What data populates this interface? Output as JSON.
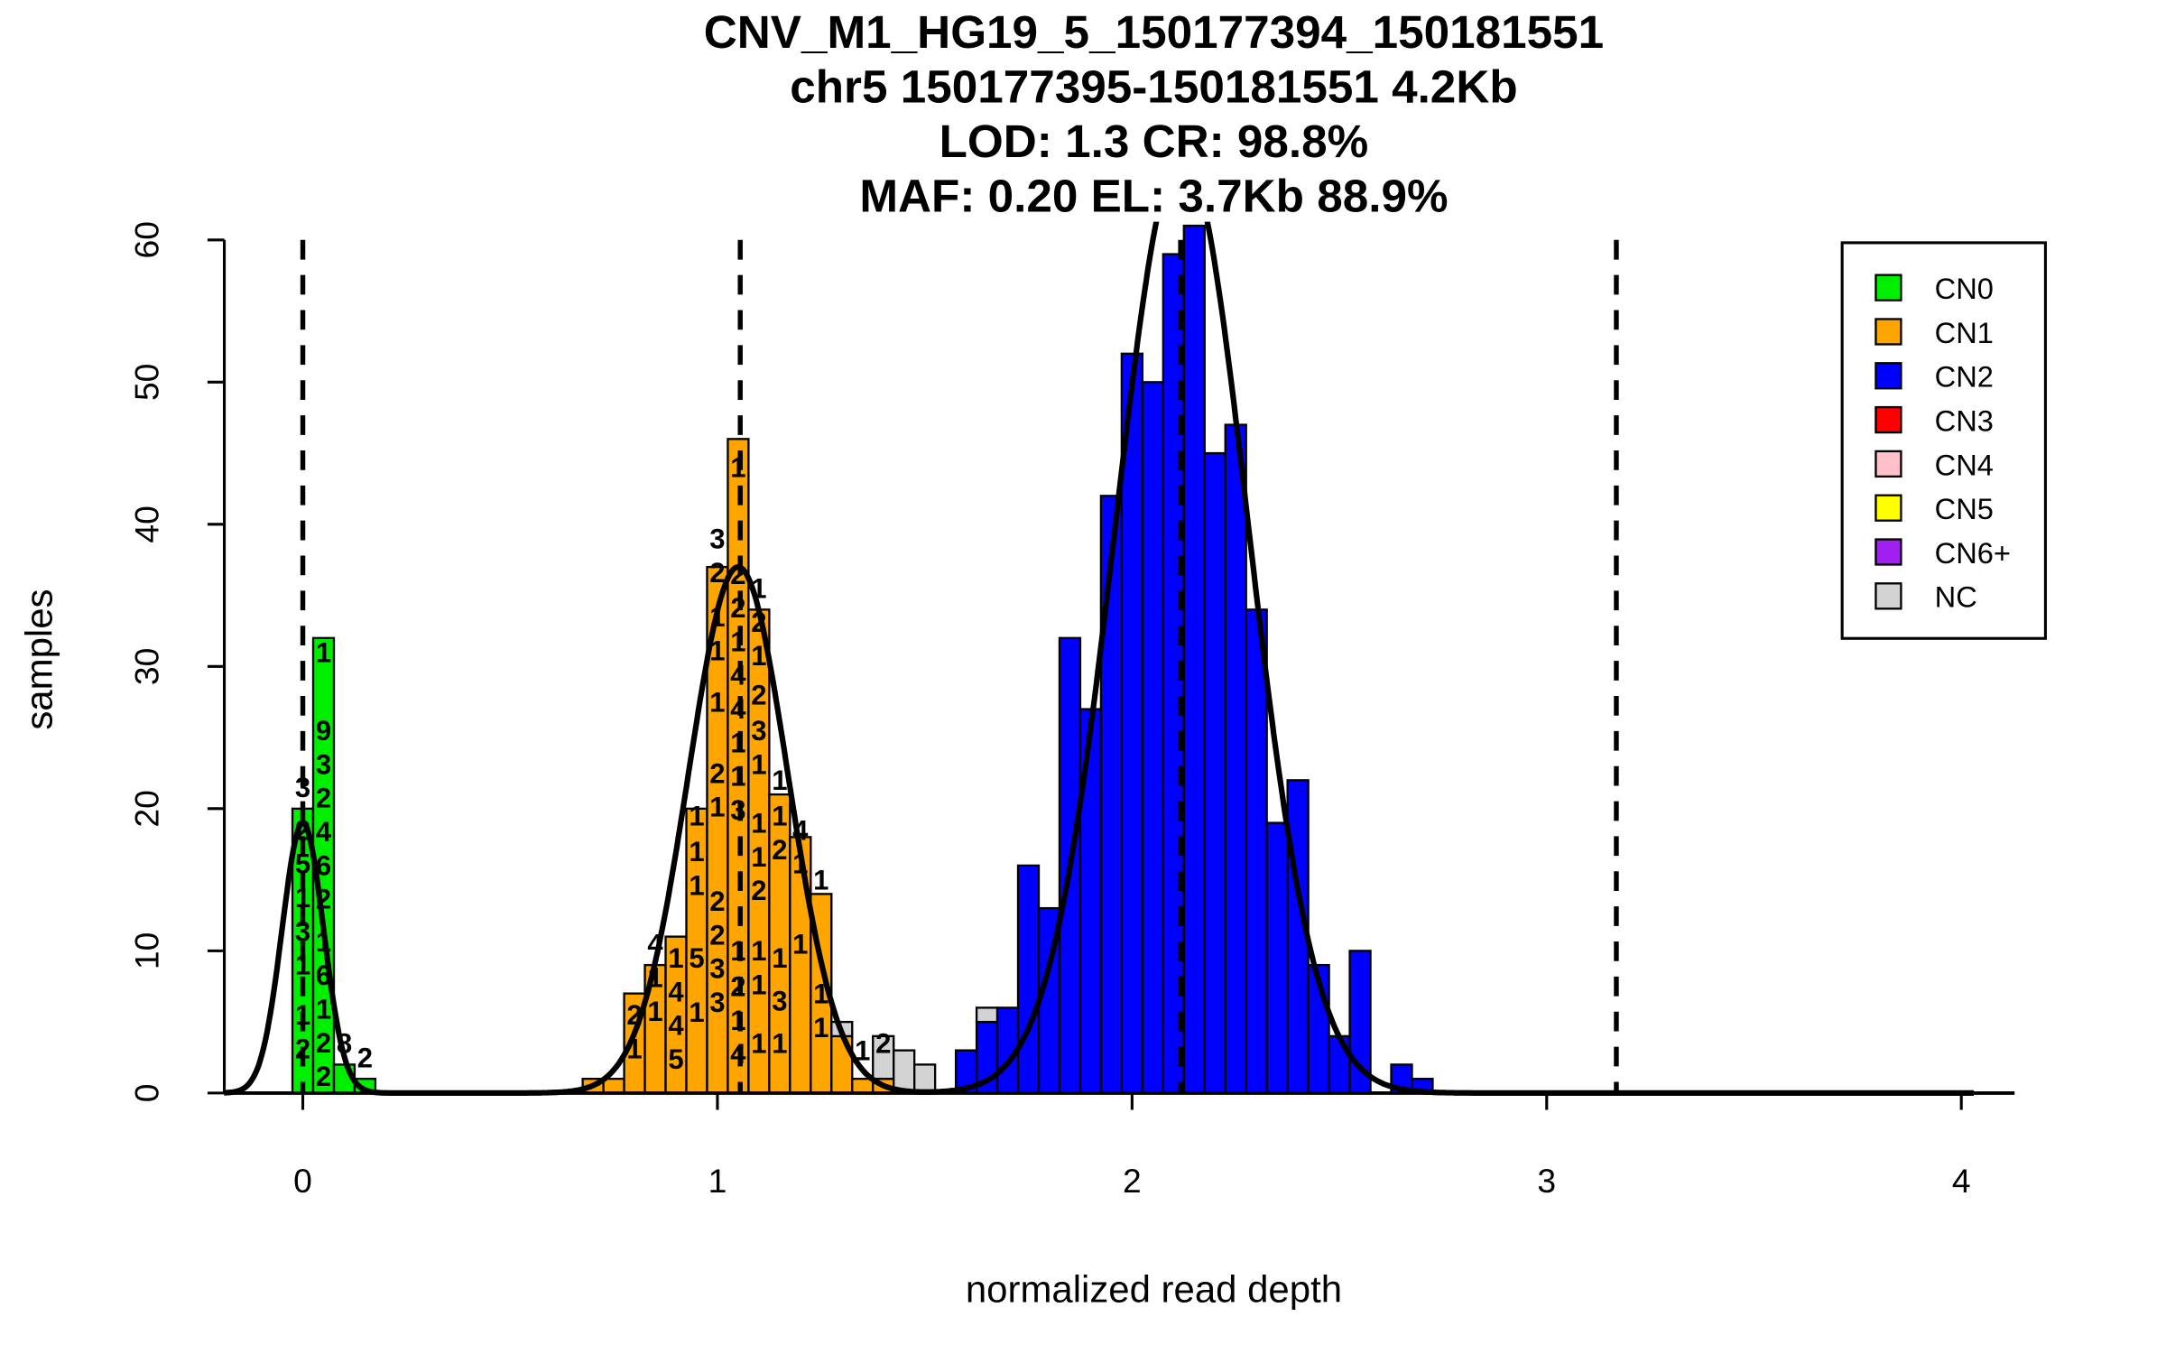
{
  "chart_data": {
    "type": "bar",
    "title_lines": [
      "CNV_M1_HG19_5_150177394_150181551",
      "chr5 150177395-150181551 4.2Kb",
      "LOD: 1.3 CR: 98.8%",
      "MAF: 0.20 EL: 3.7Kb 88.9%"
    ],
    "xlabel": "normalized read depth",
    "ylabel": "samples",
    "xlim": [
      -0.19,
      4.13
    ],
    "ylim": [
      0,
      60
    ],
    "xticks": [
      "0",
      "1",
      "2",
      "3",
      "4"
    ],
    "yticks": [
      "0",
      "10",
      "20",
      "30",
      "40",
      "50",
      "60"
    ],
    "bin_width": 0.05,
    "legend": {
      "placement": "top-right",
      "entries": [
        {
          "label": "CN0",
          "color": "#00ee00"
        },
        {
          "label": "CN1",
          "color": "#ffa500"
        },
        {
          "label": "CN2",
          "color": "#0000ff"
        },
        {
          "label": "CN3",
          "color": "#ff0000"
        },
        {
          "label": "CN4",
          "color": "#ffc0cb"
        },
        {
          "label": "CN5",
          "color": "#ffff00"
        },
        {
          "label": "CN6+",
          "color": "#a020f0"
        },
        {
          "label": "NC",
          "color": "#d3d3d3"
        }
      ]
    },
    "bins": [
      {
        "x": 0.0,
        "CN0": 20
      },
      {
        "x": 0.05,
        "CN0": 32
      },
      {
        "x": 0.1,
        "CN0": 2
      },
      {
        "x": 0.15,
        "CN0": 1
      },
      {
        "x": 0.7,
        "CN1": 1
      },
      {
        "x": 0.75,
        "CN1": 1
      },
      {
        "x": 0.8,
        "CN1": 7
      },
      {
        "x": 0.85,
        "CN1": 9
      },
      {
        "x": 0.9,
        "CN1": 11
      },
      {
        "x": 0.95,
        "CN1": 20
      },
      {
        "x": 1.0,
        "CN1": 37
      },
      {
        "x": 1.05,
        "CN1": 46
      },
      {
        "x": 1.1,
        "CN1": 34
      },
      {
        "x": 1.15,
        "CN1": 21
      },
      {
        "x": 1.2,
        "CN1": 18
      },
      {
        "x": 1.25,
        "CN1": 14
      },
      {
        "x": 1.3,
        "CN1": 4,
        "NC": 1
      },
      {
        "x": 1.35,
        "CN1": 1
      },
      {
        "x": 1.4,
        "CN1": 1,
        "NC": 3
      },
      {
        "x": 1.45,
        "NC": 3
      },
      {
        "x": 1.5,
        "NC": 2
      },
      {
        "x": 1.6,
        "CN2": 3
      },
      {
        "x": 1.65,
        "CN2": 5,
        "NC": 1
      },
      {
        "x": 1.7,
        "CN2": 6
      },
      {
        "x": 1.75,
        "CN2": 16
      },
      {
        "x": 1.8,
        "CN2": 13
      },
      {
        "x": 1.85,
        "CN2": 32
      },
      {
        "x": 1.9,
        "CN2": 27
      },
      {
        "x": 1.95,
        "CN2": 42
      },
      {
        "x": 2.0,
        "CN2": 52
      },
      {
        "x": 2.05,
        "CN2": 50
      },
      {
        "x": 2.1,
        "CN2": 59
      },
      {
        "x": 2.15,
        "CN2": 61
      },
      {
        "x": 2.2,
        "CN2": 45
      },
      {
        "x": 2.25,
        "CN2": 47
      },
      {
        "x": 2.3,
        "CN2": 34
      },
      {
        "x": 2.35,
        "CN2": 19
      },
      {
        "x": 2.4,
        "CN2": 22
      },
      {
        "x": 2.45,
        "CN2": 9
      },
      {
        "x": 2.5,
        "CN2": 4
      },
      {
        "x": 2.55,
        "CN2": 10
      },
      {
        "x": 2.65,
        "CN2": 2
      },
      {
        "x": 2.7,
        "CN2": 1
      }
    ],
    "cutoffs": [
      0.0,
      1.055,
      2.117,
      3.168
    ],
    "fits": [
      {
        "class": "CN0",
        "mean": 0.0,
        "sd": 0.05,
        "peak": 19
      },
      {
        "class": "CN1",
        "mean": 1.05,
        "sd": 0.12,
        "peak": 37
      },
      {
        "class": "CN2",
        "mean": 2.12,
        "sd": 0.16,
        "peak": 66
      }
    ],
    "bar_labels": [
      [
        0,
        21.5,
        "3"
      ],
      [
        0,
        18.5,
        "2"
      ],
      [
        0,
        17,
        "5"
      ],
      [
        0,
        15,
        "1"
      ],
      [
        0,
        14,
        "3"
      ],
      [
        0,
        12,
        "1"
      ],
      [
        0,
        5.5,
        "1"
      ],
      [
        0,
        4,
        "2"
      ],
      [
        0.05,
        31,
        "1"
      ],
      [
        0.05,
        25.5,
        "9"
      ],
      [
        0.05,
        24,
        "3"
      ],
      [
        0.05,
        22.5,
        "2"
      ],
      [
        0.05,
        18.5,
        "4"
      ],
      [
        0.05,
        17,
        "6"
      ],
      [
        0.05,
        15.5,
        "2"
      ],
      [
        0.05,
        10.5,
        "1"
      ],
      [
        0.05,
        9,
        "6"
      ],
      [
        0.05,
        7.5,
        "1"
      ],
      [
        0.05,
        6,
        "2"
      ],
      [
        0.05,
        4.5,
        "2"
      ],
      [
        0.1,
        3.5,
        "8"
      ],
      [
        0.15,
        2.5,
        "2"
      ],
      [
        0.8,
        5.5,
        "2"
      ],
      [
        0.8,
        4,
        "1"
      ],
      [
        0.85,
        10.5,
        "4"
      ],
      [
        0.85,
        8.5,
        "1"
      ],
      [
        0.85,
        6,
        "1"
      ],
      [
        0.9,
        9.5,
        "1"
      ],
      [
        0.9,
        7.5,
        "4"
      ],
      [
        0.9,
        6,
        "4"
      ],
      [
        0.9,
        3.5,
        "5"
      ],
      [
        0.95,
        19.5,
        "1"
      ],
      [
        0.95,
        17,
        "1"
      ],
      [
        0.95,
        15.5,
        "1"
      ],
      [
        0.95,
        9.5,
        "5"
      ],
      [
        0.95,
        5.7,
        "1"
      ],
      [
        1.0,
        39,
        "3"
      ],
      [
        1.0,
        38,
        "2"
      ],
      [
        1.0,
        33.5,
        "1"
      ],
      [
        1.0,
        31.8,
        "1"
      ],
      [
        1.0,
        27.5,
        "1"
      ],
      [
        1.0,
        22.5,
        "2"
      ],
      [
        1.0,
        20.5,
        "1"
      ],
      [
        1.0,
        13.5,
        "2"
      ],
      [
        1.0,
        12,
        "2"
      ],
      [
        1.0,
        10.5,
        "3"
      ],
      [
        1.0,
        9.3,
        "3"
      ],
      [
        1.05,
        44,
        "1"
      ],
      [
        1.05,
        36.5,
        "2"
      ],
      [
        1.05,
        35,
        "2"
      ],
      [
        1.05,
        34,
        "1"
      ],
      [
        1.05,
        33,
        "4"
      ],
      [
        1.05,
        30.5,
        "4"
      ],
      [
        1.05,
        27,
        "1"
      ],
      [
        1.05,
        23,
        "1"
      ],
      [
        1.05,
        20,
        "3"
      ],
      [
        1.05,
        10,
        "1"
      ],
      [
        1.05,
        7.5,
        "2"
      ],
      [
        1.05,
        6,
        "1"
      ],
      [
        1.05,
        4,
        "4"
      ],
      [
        1.1,
        35.5,
        "1"
      ],
      [
        1.1,
        34,
        "2"
      ],
      [
        1.1,
        31.5,
        "1"
      ],
      [
        1.1,
        28,
        "2"
      ],
      [
        1.1,
        25.5,
        "3"
      ],
      [
        1.1,
        23.5,
        "1"
      ],
      [
        1.1,
        19,
        "1"
      ],
      [
        1.1,
        17.5,
        "1"
      ],
      [
        1.1,
        15,
        "2"
      ],
      [
        1.1,
        10,
        "1"
      ],
      [
        1.1,
        8,
        "1"
      ],
      [
        1.1,
        3.5,
        "1"
      ],
      [
        1.15,
        22,
        "1"
      ],
      [
        1.15,
        19.5,
        "1"
      ],
      [
        1.15,
        18.5,
        "2"
      ],
      [
        1.15,
        9.5,
        "1"
      ],
      [
        1.15,
        6.5,
        "3"
      ],
      [
        1.15,
        3.5,
        "1"
      ],
      [
        1.2,
        18.5,
        "4"
      ],
      [
        1.2,
        17.7,
        "1"
      ],
      [
        1.2,
        10.5,
        "1"
      ],
      [
        1.25,
        15,
        "1"
      ],
      [
        1.25,
        7,
        "1"
      ],
      [
        1.25,
        5,
        "1"
      ],
      [
        1.35,
        3,
        "1"
      ],
      [
        1.4,
        3.5,
        "2"
      ]
    ]
  }
}
